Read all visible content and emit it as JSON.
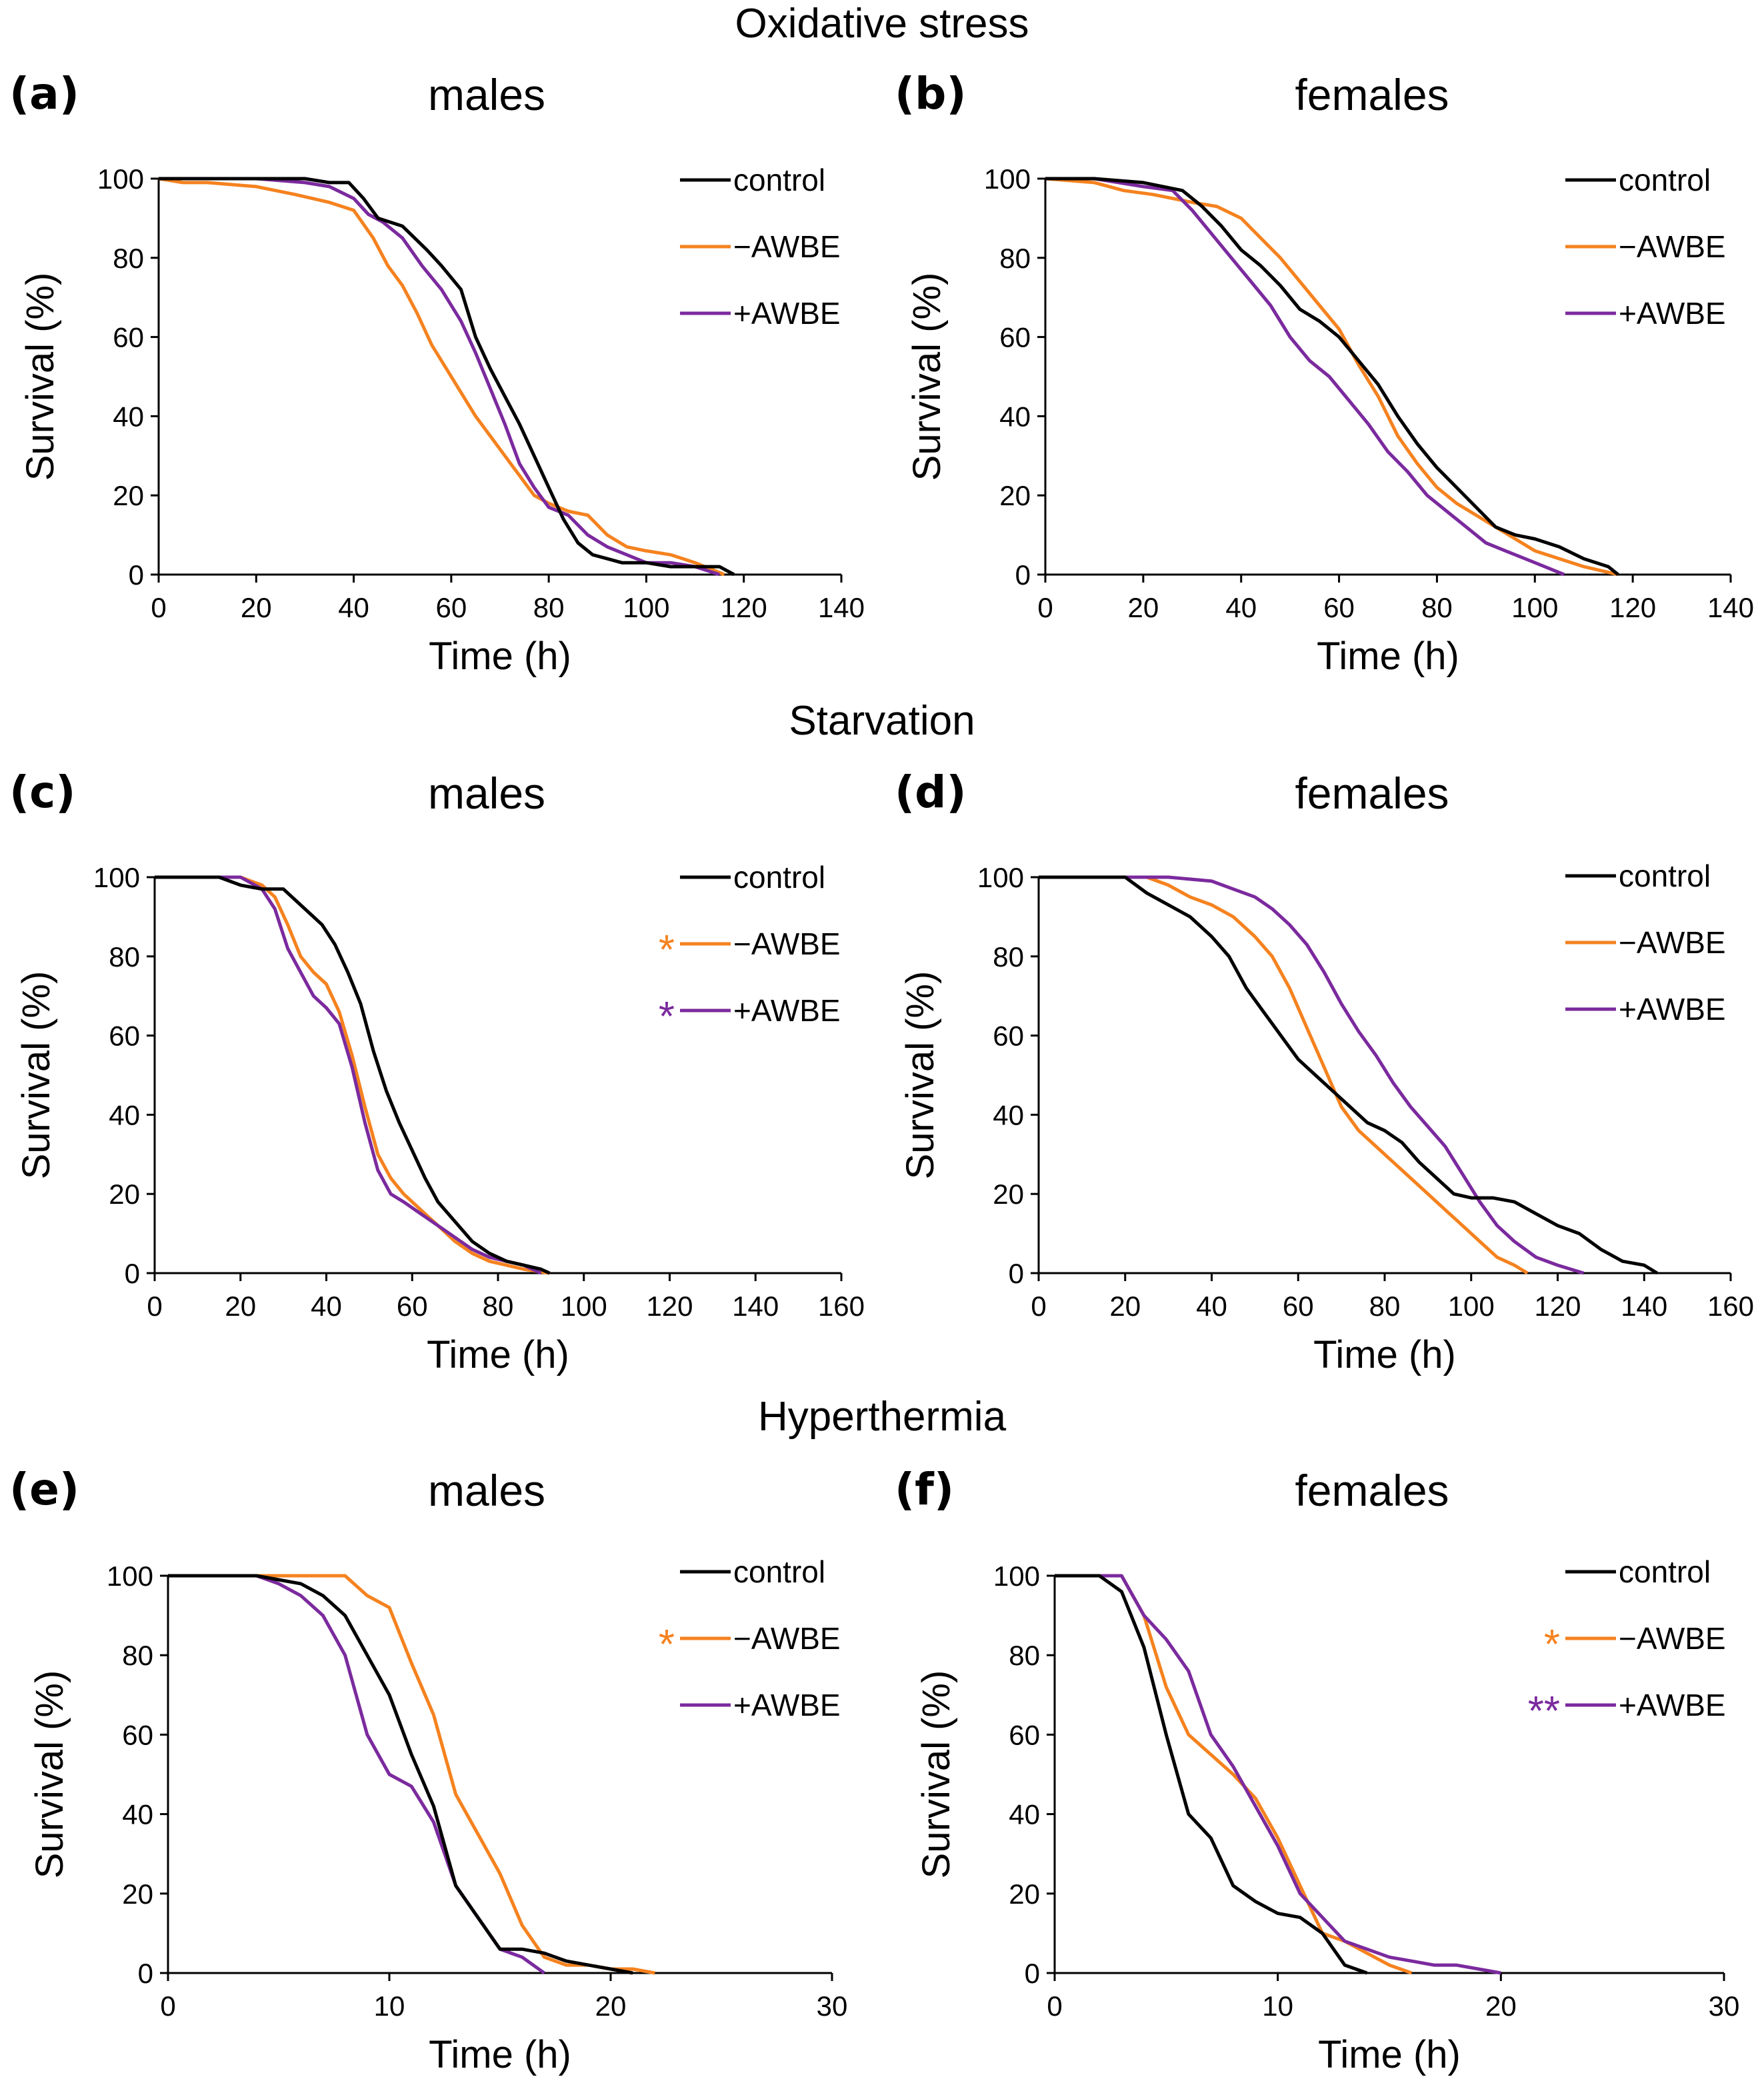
{
  "sections": {
    "oxidative": "Oxidative stress",
    "starvation": "Starvation",
    "hyperthermia": "Hyperthermia"
  },
  "colors": {
    "control": "#000000",
    "minus": "#F5821F",
    "plus": "#7B2A9E"
  },
  "chart_data": [
    {
      "id": "a",
      "label": "(a)",
      "title": "males",
      "type": "line",
      "xlabel": "Time (h)",
      "ylabel": "Survival (%)",
      "xlim": [
        0,
        140
      ],
      "xticks": [
        0,
        20,
        40,
        60,
        80,
        100,
        120,
        140
      ],
      "ylim": [
        0,
        100
      ],
      "yticks": [
        0,
        20,
        40,
        60,
        80,
        100
      ],
      "legend": [
        "control",
        "−AWBE",
        "+AWBE"
      ],
      "significance": [
        "",
        "",
        ""
      ],
      "series": [
        {
          "name": "control",
          "x": [
            0,
            20,
            30,
            35,
            39,
            42,
            45,
            50,
            55,
            58,
            62,
            65,
            68,
            71,
            74,
            77,
            80,
            83,
            86,
            89,
            92,
            95,
            100,
            105,
            110,
            115,
            118
          ],
          "y": [
            100,
            100,
            100,
            99,
            99,
            95,
            90,
            88,
            82,
            78,
            72,
            60,
            52,
            45,
            38,
            30,
            22,
            14,
            8,
            5,
            4,
            3,
            3,
            2,
            2,
            2,
            0
          ]
        },
        {
          "name": "−AWBE",
          "x": [
            0,
            5,
            10,
            20,
            28,
            35,
            40,
            44,
            47,
            50,
            53,
            56,
            59,
            62,
            65,
            68,
            71,
            74,
            77,
            80,
            84,
            88,
            92,
            96,
            100,
            105,
            110,
            116
          ],
          "y": [
            100,
            99,
            99,
            98,
            96,
            94,
            92,
            85,
            78,
            73,
            66,
            58,
            52,
            46,
            40,
            35,
            30,
            25,
            20,
            18,
            16,
            15,
            10,
            7,
            6,
            5,
            3,
            0
          ]
        },
        {
          "name": "+AWBE",
          "x": [
            0,
            20,
            30,
            35,
            40,
            43,
            46,
            50,
            54,
            58,
            62,
            65,
            68,
            71,
            74,
            77,
            80,
            84,
            88,
            92,
            96,
            100,
            105,
            110,
            115
          ],
          "y": [
            100,
            100,
            99,
            98,
            95,
            91,
            89,
            85,
            78,
            72,
            64,
            56,
            47,
            38,
            28,
            22,
            17,
            15,
            10,
            7,
            5,
            3,
            3,
            2,
            0
          ]
        }
      ]
    },
    {
      "id": "b",
      "label": "(b)",
      "title": "females",
      "type": "line",
      "xlabel": "Time (h)",
      "ylabel": "Survival (%)",
      "xlim": [
        0,
        140
      ],
      "xticks": [
        0,
        20,
        40,
        60,
        80,
        100,
        120,
        140
      ],
      "ylim": [
        0,
        100
      ],
      "yticks": [
        0,
        20,
        40,
        60,
        80,
        100
      ],
      "legend": [
        "control",
        "−AWBE",
        "+AWBE"
      ],
      "significance": [
        "",
        "",
        ""
      ],
      "series": [
        {
          "name": "control",
          "x": [
            0,
            10,
            20,
            28,
            32,
            36,
            40,
            44,
            48,
            52,
            56,
            60,
            64,
            68,
            72,
            76,
            80,
            84,
            88,
            92,
            96,
            100,
            105,
            110,
            115,
            117
          ],
          "y": [
            100,
            100,
            99,
            97,
            93,
            88,
            82,
            78,
            73,
            67,
            64,
            60,
            54,
            48,
            40,
            33,
            27,
            22,
            17,
            12,
            10,
            9,
            7,
            4,
            2,
            0
          ]
        },
        {
          "name": "−AWBE",
          "x": [
            0,
            10,
            16,
            22,
            30,
            35,
            40,
            44,
            48,
            52,
            56,
            60,
            64,
            68,
            72,
            76,
            80,
            84,
            88,
            92,
            96,
            100,
            105,
            110,
            117
          ],
          "y": [
            100,
            99,
            97,
            96,
            94,
            93,
            90,
            85,
            80,
            74,
            68,
            62,
            53,
            45,
            35,
            28,
            22,
            18,
            15,
            12,
            9,
            6,
            4,
            2,
            0
          ]
        },
        {
          "name": "+AWBE",
          "x": [
            0,
            10,
            20,
            26,
            30,
            34,
            38,
            42,
            46,
            50,
            54,
            58,
            62,
            66,
            70,
            74,
            78,
            82,
            86,
            90,
            94,
            98,
            102,
            106
          ],
          "y": [
            100,
            100,
            98,
            97,
            92,
            86,
            80,
            74,
            68,
            60,
            54,
            50,
            44,
            38,
            31,
            26,
            20,
            16,
            12,
            8,
            6,
            4,
            2,
            0
          ]
        }
      ]
    },
    {
      "id": "c",
      "label": "(c)",
      "title": "males",
      "type": "line",
      "xlabel": "Time (h)",
      "ylabel": "Survival (%)",
      "xlim": [
        0,
        160
      ],
      "xticks": [
        0,
        20,
        40,
        60,
        80,
        100,
        120,
        140,
        160
      ],
      "ylim": [
        0,
        100
      ],
      "yticks": [
        0,
        20,
        40,
        60,
        80,
        100
      ],
      "legend": [
        "control",
        "−AWBE",
        "+AWBE"
      ],
      "significance": [
        "",
        "*",
        "*"
      ],
      "series": [
        {
          "name": "control",
          "x": [
            0,
            15,
            20,
            25,
            30,
            33,
            36,
            39,
            42,
            45,
            48,
            51,
            54,
            57,
            60,
            63,
            66,
            70,
            74,
            78,
            82,
            86,
            90,
            92
          ],
          "y": [
            100,
            100,
            98,
            97,
            97,
            94,
            91,
            88,
            83,
            76,
            68,
            56,
            46,
            38,
            31,
            24,
            18,
            13,
            8,
            5,
            3,
            2,
            1,
            0
          ]
        },
        {
          "name": "−AWBE",
          "x": [
            0,
            20,
            25,
            28,
            31,
            34,
            37,
            40,
            43,
            46,
            49,
            52,
            55,
            58,
            62,
            66,
            70,
            74,
            78,
            82,
            86,
            92
          ],
          "y": [
            100,
            100,
            98,
            95,
            88,
            80,
            76,
            73,
            66,
            55,
            42,
            30,
            24,
            20,
            16,
            12,
            8,
            5,
            3,
            2,
            1,
            0
          ]
        },
        {
          "name": "+AWBE",
          "x": [
            0,
            20,
            25,
            28,
            31,
            34,
            37,
            40,
            43,
            46,
            49,
            52,
            55,
            58,
            62,
            66,
            70,
            74,
            78,
            82,
            86,
            90
          ],
          "y": [
            100,
            100,
            97,
            92,
            82,
            76,
            70,
            67,
            63,
            52,
            38,
            26,
            20,
            18,
            15,
            12,
            9,
            6,
            4,
            3,
            2,
            0
          ]
        }
      ]
    },
    {
      "id": "d",
      "label": "(d)",
      "title": "females",
      "type": "line",
      "xlabel": "Time (h)",
      "ylabel": "Survival (%)",
      "xlim": [
        0,
        160
      ],
      "xticks": [
        0,
        20,
        40,
        60,
        80,
        100,
        120,
        140,
        160
      ],
      "ylim": [
        0,
        100
      ],
      "yticks": [
        0,
        20,
        40,
        60,
        80,
        100
      ],
      "legend": [
        "control",
        "−AWBE",
        "+AWBE"
      ],
      "significance": [
        "",
        "",
        ""
      ],
      "series": [
        {
          "name": "control",
          "x": [
            0,
            20,
            25,
            30,
            35,
            40,
            44,
            48,
            52,
            56,
            60,
            64,
            68,
            72,
            76,
            80,
            84,
            88,
            92,
            96,
            100,
            105,
            110,
            115,
            120,
            125,
            130,
            135,
            140,
            143
          ],
          "y": [
            100,
            100,
            96,
            93,
            90,
            85,
            80,
            72,
            66,
            60,
            54,
            50,
            46,
            42,
            38,
            36,
            33,
            28,
            24,
            20,
            19,
            19,
            18,
            15,
            12,
            10,
            6,
            3,
            2,
            0
          ]
        },
        {
          "name": "−AWBE",
          "x": [
            0,
            25,
            30,
            35,
            40,
            45,
            50,
            54,
            58,
            62,
            66,
            70,
            74,
            78,
            82,
            86,
            90,
            94,
            98,
            102,
            106,
            110,
            113
          ],
          "y": [
            100,
            100,
            98,
            95,
            93,
            90,
            85,
            80,
            72,
            62,
            52,
            42,
            36,
            32,
            28,
            24,
            20,
            16,
            12,
            8,
            4,
            2,
            0
          ]
        },
        {
          "name": "+AWBE",
          "x": [
            0,
            30,
            40,
            45,
            50,
            54,
            58,
            62,
            66,
            70,
            74,
            78,
            82,
            86,
            90,
            94,
            98,
            102,
            106,
            110,
            115,
            120,
            126
          ],
          "y": [
            100,
            100,
            99,
            97,
            95,
            92,
            88,
            83,
            76,
            68,
            61,
            55,
            48,
            42,
            37,
            32,
            25,
            18,
            12,
            8,
            4,
            2,
            0
          ]
        }
      ]
    },
    {
      "id": "e",
      "label": "(e)",
      "title": "males",
      "type": "line",
      "xlabel": "Time (h)",
      "ylabel": "Survival (%)",
      "xlim": [
        0,
        30
      ],
      "xticks": [
        0,
        10,
        20,
        30
      ],
      "ylim": [
        0,
        100
      ],
      "yticks": [
        0,
        20,
        40,
        60,
        80,
        100
      ],
      "legend": [
        "control",
        "−AWBE",
        "+AWBE"
      ],
      "significance": [
        "",
        "*",
        ""
      ],
      "series": [
        {
          "name": "control",
          "x": [
            0,
            4,
            5,
            6,
            7,
            8,
            9,
            10,
            11,
            12,
            13,
            14,
            15,
            16,
            17,
            18,
            19,
            20,
            21
          ],
          "y": [
            100,
            100,
            99,
            98,
            95,
            90,
            80,
            70,
            55,
            42,
            22,
            14,
            6,
            6,
            5,
            3,
            2,
            1,
            0
          ]
        },
        {
          "name": "−AWBE",
          "x": [
            0,
            4,
            6,
            8,
            9,
            10,
            11,
            12,
            13,
            14,
            15,
            16,
            17,
            18,
            19,
            20,
            21,
            22
          ],
          "y": [
            100,
            100,
            100,
            100,
            95,
            92,
            78,
            65,
            45,
            35,
            25,
            12,
            4,
            2,
            2,
            1,
            1,
            0
          ]
        },
        {
          "name": "+AWBE",
          "x": [
            0,
            4,
            5,
            6,
            7,
            8,
            9,
            10,
            11,
            12,
            13,
            14,
            15,
            16,
            17
          ],
          "y": [
            100,
            100,
            98,
            95,
            90,
            80,
            60,
            50,
            47,
            38,
            22,
            14,
            6,
            4,
            0
          ]
        }
      ]
    },
    {
      "id": "f",
      "label": "(f)",
      "title": "females",
      "type": "line",
      "xlabel": "Time (h)",
      "ylabel": "Survival (%)",
      "xlim": [
        0,
        30
      ],
      "xticks": [
        0,
        10,
        20,
        30
      ],
      "ylim": [
        0,
        100
      ],
      "yticks": [
        0,
        20,
        40,
        60,
        80,
        100
      ],
      "legend": [
        "control",
        "−AWBE",
        "+AWBE"
      ],
      "significance": [
        "",
        "*",
        "**"
      ],
      "series": [
        {
          "name": "control",
          "x": [
            0,
            2,
            3,
            4,
            5,
            6,
            7,
            8,
            9,
            10,
            11,
            12,
            13,
            14
          ],
          "y": [
            100,
            100,
            96,
            82,
            60,
            40,
            34,
            22,
            18,
            15,
            14,
            10,
            2,
            0
          ]
        },
        {
          "name": "−AWBE",
          "x": [
            0,
            2,
            3,
            4,
            5,
            6,
            7,
            8,
            9,
            10,
            11,
            12,
            13,
            14,
            15,
            16
          ],
          "y": [
            100,
            100,
            100,
            90,
            72,
            60,
            55,
            50,
            44,
            34,
            22,
            10,
            8,
            5,
            2,
            0
          ]
        },
        {
          "name": "+AWBE",
          "x": [
            0,
            2,
            3,
            4,
            5,
            6,
            7,
            8,
            9,
            10,
            11,
            12,
            13,
            14,
            15,
            16,
            17,
            18,
            19,
            20
          ],
          "y": [
            100,
            100,
            100,
            90,
            84,
            76,
            60,
            52,
            42,
            32,
            20,
            14,
            8,
            6,
            4,
            3,
            2,
            2,
            1,
            0
          ]
        }
      ]
    }
  ]
}
